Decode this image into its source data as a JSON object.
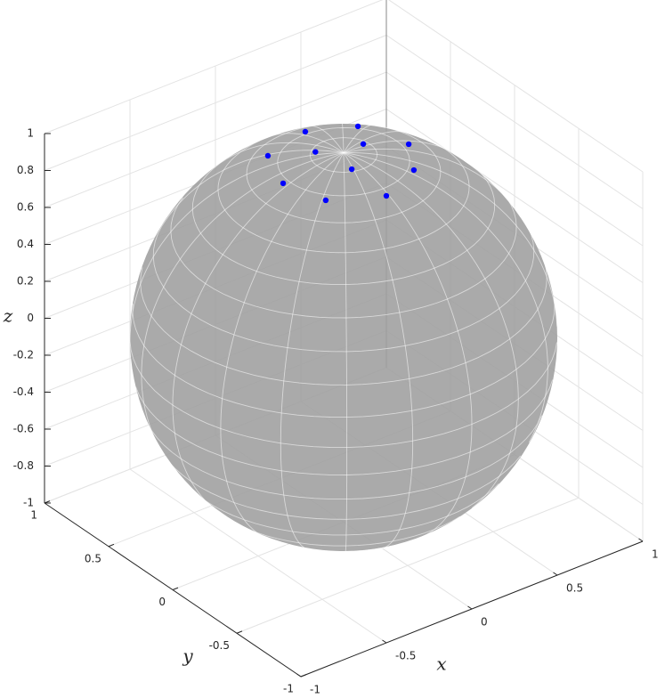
{
  "chart_data": {
    "type": "scatter3d",
    "x": [
      0.257,
      0.033,
      0.13,
      0.347,
      -0.236,
      -0.09,
      -0.05,
      0.225,
      -0.33,
      -0.017,
      -0.265
    ],
    "y": [
      0.231,
      0.343,
      0.02,
      -0.045,
      0.276,
      0.1,
      -0.13,
      -0.248,
      0.032,
      -0.356,
      -0.214
    ],
    "z": [
      0.94,
      0.94,
      0.99,
      0.94,
      0.94,
      0.99,
      0.99,
      0.94,
      0.94,
      0.94,
      0.94
    ],
    "color": "#0000ff",
    "xlim": [
      -1,
      1
    ],
    "ylim": [
      -1,
      1
    ],
    "zlim": [
      -1,
      1
    ],
    "xticks": [
      -1,
      -0.5,
      0,
      0.5,
      1
    ],
    "yticks": [
      -1,
      -0.5,
      0,
      0.5,
      1
    ],
    "zticks": [
      -1,
      -0.8,
      -0.6,
      -0.4,
      -0.2,
      0,
      0.2,
      0.4,
      0.6,
      0.8,
      1
    ],
    "xlabel": "x",
    "ylabel": "y",
    "zlabel": "z",
    "grid": true
  }
}
